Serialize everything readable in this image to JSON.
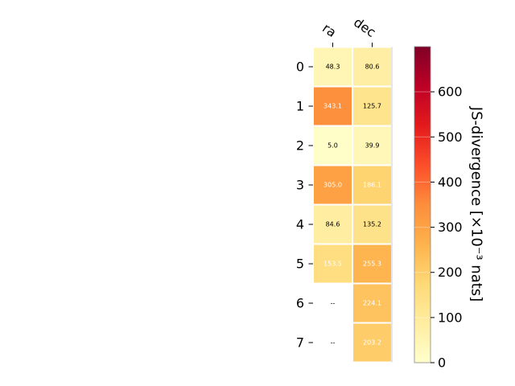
{
  "chart_data": {
    "type": "heatmap",
    "columns": [
      "ra",
      "dec"
    ],
    "rows": [
      "0",
      "1",
      "2",
      "3",
      "4",
      "5",
      "6",
      "7"
    ],
    "values": [
      [
        48.3,
        80.6
      ],
      [
        343.1,
        125.7
      ],
      [
        5.0,
        39.9
      ],
      [
        305.0,
        186.1
      ],
      [
        84.6,
        135.2
      ],
      [
        153.5,
        255.3
      ],
      [
        null,
        224.1
      ],
      [
        null,
        203.2
      ]
    ],
    "cell_labels": [
      [
        "48.3",
        "80.6"
      ],
      [
        "343.1",
        "125.7"
      ],
      [
        "5.0",
        "39.9"
      ],
      [
        "305.0",
        "186.1"
      ],
      [
        "84.6",
        "135.2"
      ],
      [
        "153.5",
        "255.3"
      ],
      [
        "--",
        "224.1"
      ],
      [
        "--",
        "203.2"
      ]
    ],
    "colorbar": {
      "label": "JS-divergence [×10⁻³ nats]",
      "vmin": 0,
      "vmax": 700,
      "ticks": [
        0,
        100,
        200,
        300,
        400,
        500,
        600
      ],
      "tick_labels": [
        "0",
        "100",
        "200",
        "300",
        "400",
        "500",
        "600"
      ],
      "colormap": "YlOrRd"
    }
  }
}
